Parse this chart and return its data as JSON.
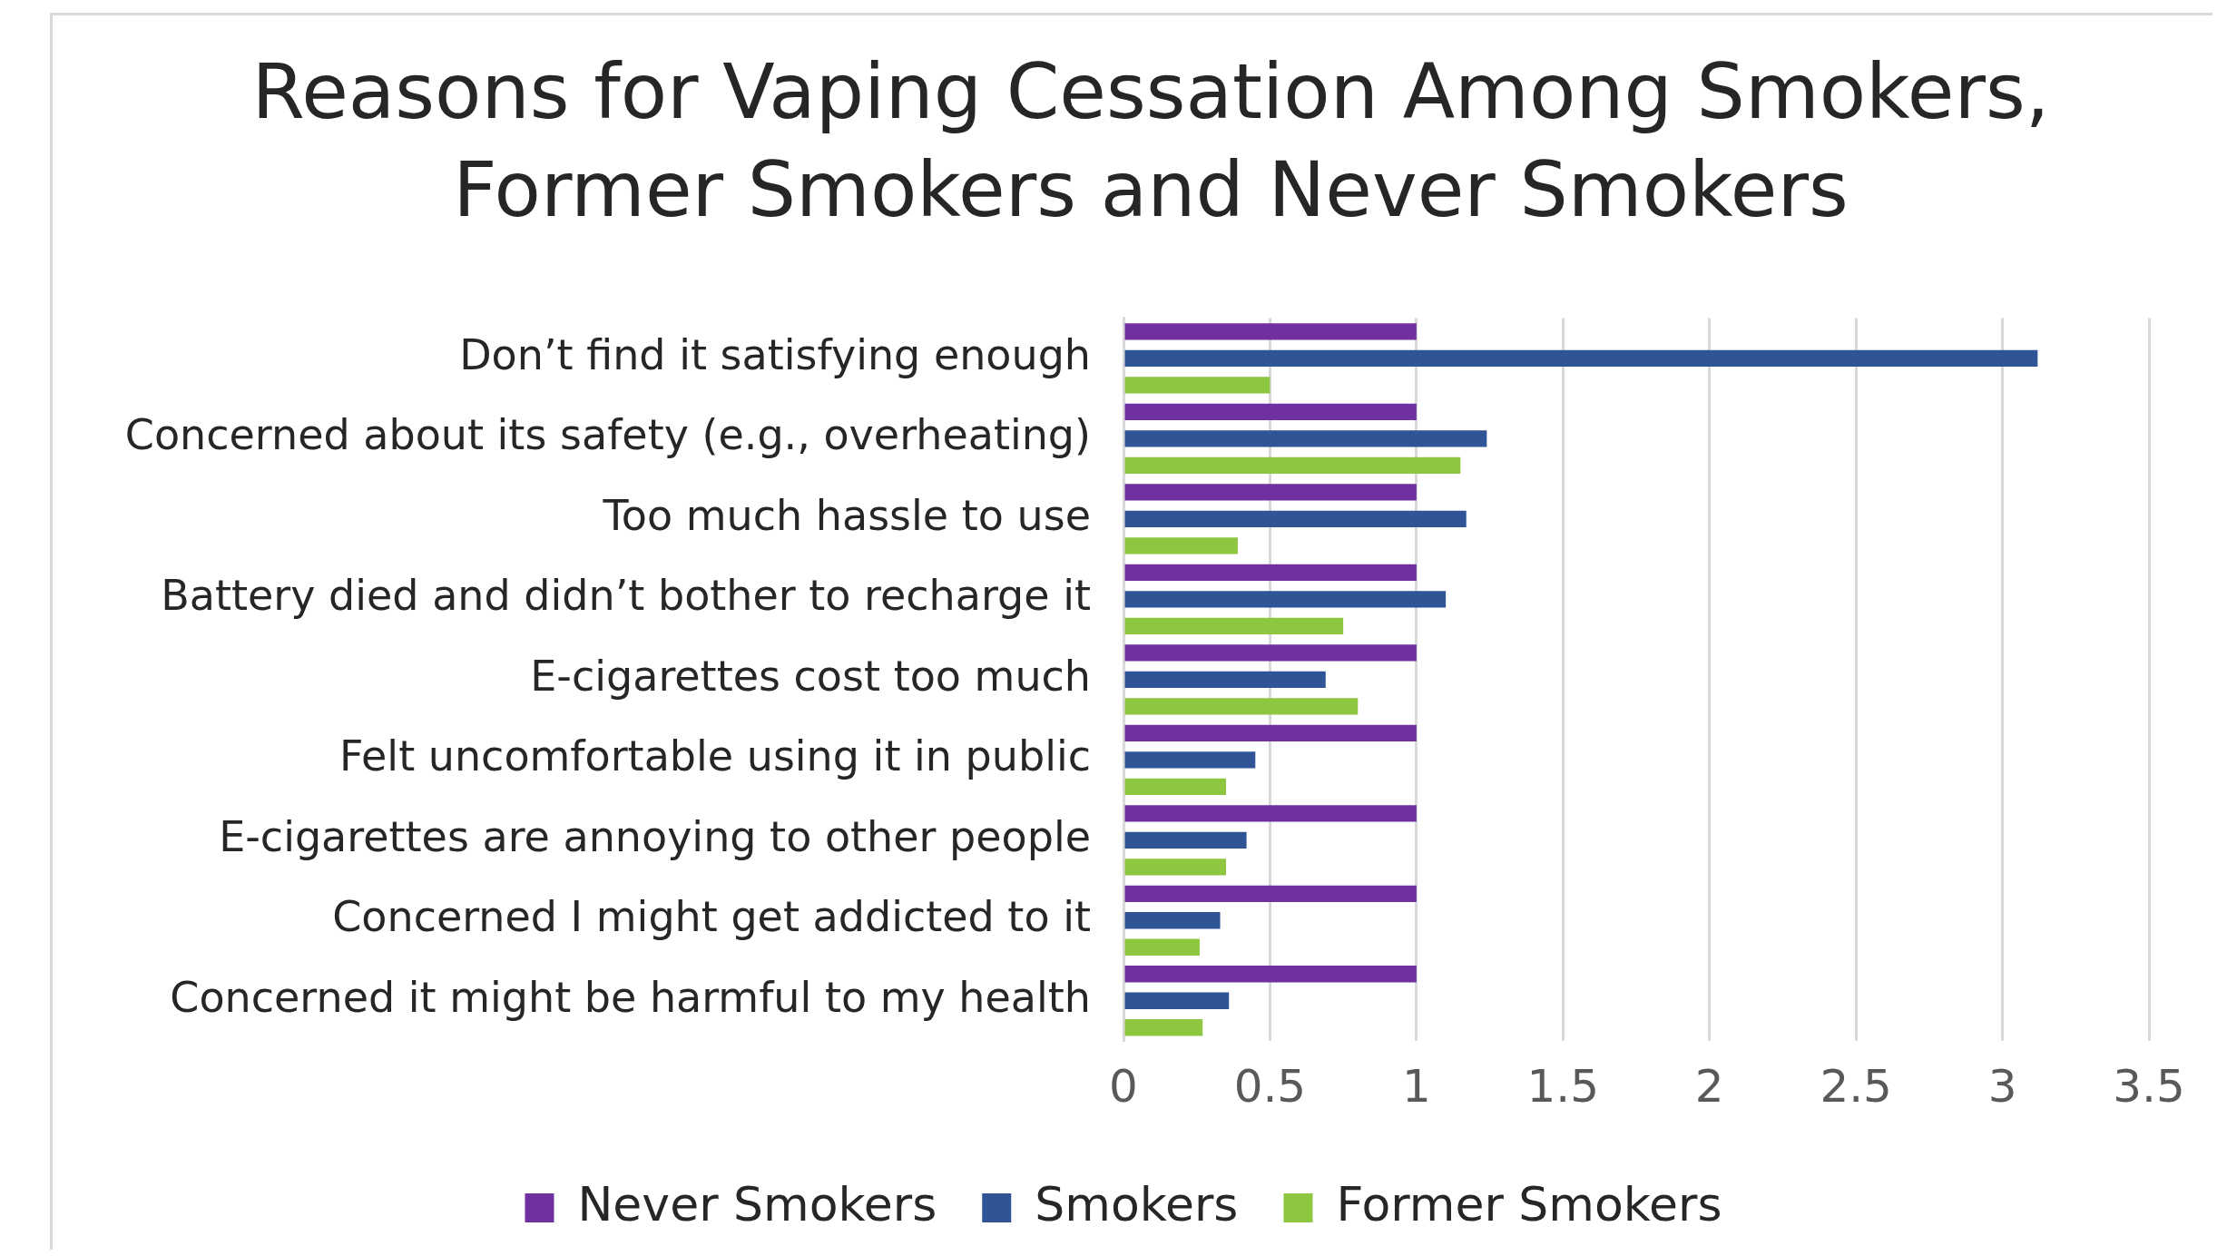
{
  "chart_data": {
    "type": "bar",
    "orientation": "horizontal",
    "title": "Reasons for Vaping Cessation Among Smokers, Former Smokers and Never Smokers",
    "categories": [
      "Don’t find it satisfying enough",
      "Concerned about its safety (e.g., overheating)",
      "Too much hassle to use",
      "Battery died and didn’t bother to recharge it",
      "E-cigarettes cost too much",
      "Felt uncomfortable using it in public",
      "E-cigarettes are annoying to other people",
      "Concerned I might get addicted to it",
      "Concerned it might be harmful to my health"
    ],
    "series": [
      {
        "name": "Never Smokers",
        "color": "#7030a0",
        "values": [
          1,
          1,
          1,
          1,
          1,
          1,
          1,
          1,
          1
        ]
      },
      {
        "name": "Smokers",
        "color": "#2f5597",
        "values": [
          3.12,
          1.24,
          1.17,
          1.1,
          0.69,
          0.45,
          0.42,
          0.33,
          0.36
        ]
      },
      {
        "name": "Former Smokers",
        "color": "#8dc63f",
        "values": [
          0.5,
          1.15,
          0.39,
          0.75,
          0.8,
          0.35,
          0.35,
          0.26,
          0.27
        ]
      }
    ],
    "xlim": [
      0,
      3.5
    ],
    "xticks": [
      0,
      0.5,
      1,
      1.5,
      2,
      2.5,
      3,
      3.5
    ],
    "grid": "x",
    "legend": "bottom"
  }
}
